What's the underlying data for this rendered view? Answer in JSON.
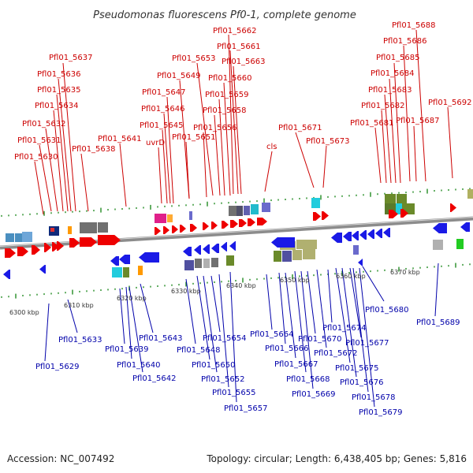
{
  "header": {
    "title": "Pseudomonas fluorescens Pf0-1, complete genome"
  },
  "footer": {
    "accession": "Accession: NC_007492",
    "summary": "Topology: circular; Length: 6,438,405 bp; Genes: 5,816"
  },
  "colors": {
    "forward_gene": "#ee0000",
    "reverse_gene": "#1a1ae6",
    "label_top": "#cc0000",
    "label_bottom": "#0000aa",
    "tick": "#228b22",
    "backbone": "#8c8c8c"
  },
  "scale_labels": [
    "6300 kbp",
    "6310 kbp",
    "6320 kbp",
    "6330 kbp",
    "6340 kbp",
    "6350 kbp",
    "6360 kbp",
    "6370 kbp"
  ],
  "top_labels": [
    "Pfl01_5630",
    "Pfl01_5631",
    "Pfl01_5632",
    "Pfl01_5634",
    "Pfl01_5635",
    "Pfl01_5636",
    "Pfl01_5637",
    "Pfl01_5638",
    "Pfl01_5641",
    "uvrD",
    "Pfl01_5645",
    "Pfl01_5646",
    "Pfl01_5647",
    "Pfl01_5649",
    "Pfl01_5653",
    "Pfl01_5651",
    "Pfl01_5656",
    "Pfl01_5658",
    "Pfl01_5659",
    "Pfl01_5660",
    "Pfl01_5663",
    "Pfl01_5661",
    "Pfl01_5662",
    "cls",
    "Pfl01_5671",
    "Pfl01_5673",
    "Pfl01_5681",
    "Pfl01_5682",
    "Pfl01_5683",
    "Pfl01_5684",
    "Pfl01_5685",
    "Pfl01_5686",
    "Pfl01_5688",
    "Pfl01_5687",
    "Pfl01_5692"
  ],
  "bottom_labels": [
    "Pfl01_5629",
    "Pfl01_5633",
    "Pfl01_5639",
    "Pfl01_5640",
    "Pfl01_5642",
    "Pfl01_5643",
    "Pfl01_5648",
    "Pfl01_5650",
    "Pfl01_5652",
    "Pfl01_5654",
    "Pfl01_5655",
    "Pfl01_5657",
    "Pfl01_5664",
    "Pfl01_5666",
    "Pfl01_5667",
    "Pfl01_5668",
    "Pfl01_5669",
    "Pfl01_5670",
    "Pfl01_5672",
    "Pfl01_5674",
    "Pfl01_5675",
    "Pfl01_5676",
    "Pfl01_5677",
    "Pfl01_5678",
    "Pfl01_5679",
    "Pfl01_5680",
    "Pfl01_5689"
  ]
}
